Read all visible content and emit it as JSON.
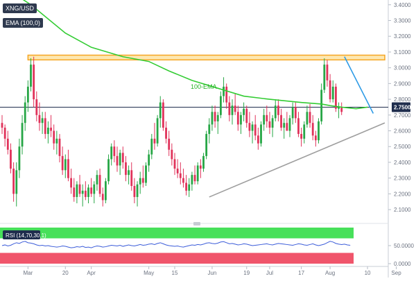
{
  "symbol": "XNG/USD",
  "indicator_tag": "EMA (100,0)",
  "rsi_tag": "RSI (14,70,30,1)",
  "annotation": "100-EMA",
  "current_price_label": "2.7500",
  "colors": {
    "bull": "#26a645",
    "bear": "#e0325a",
    "ema": "#33cc33",
    "resistance_zone": "#f5a623",
    "trend_support": "#9e9e9e",
    "trend_resistance": "#2e9be6",
    "price_line": "#1f2d4d",
    "rsi_line": "#3a5bd9",
    "rsi_overbought": "#47e05a",
    "rsi_oversold": "#f0556b"
  },
  "chart_data": [
    {
      "type": "candlestick",
      "title": "XNG/USD",
      "y_ticks": [
        "3.4000",
        "3.3000",
        "3.2000",
        "3.1000",
        "3.0000",
        "2.9000",
        "2.8000",
        "2.7000",
        "2.6000",
        "2.5000",
        "2.4000",
        "2.3000",
        "2.2000",
        "2.1000"
      ],
      "ylim": [
        2.03,
        3.43
      ],
      "x_ticks": [
        "Mar",
        "20",
        "Apr",
        "May",
        "15",
        "Jun",
        "19",
        "Jul",
        "17",
        "Aug",
        "10",
        "Sep"
      ],
      "x_tick_index": [
        9,
        22,
        31,
        51,
        60,
        73,
        85,
        93,
        104,
        114,
        127,
        137
      ],
      "ohlc": [
        [
          2.65,
          2.7,
          2.58,
          2.62
        ],
        [
          2.62,
          2.64,
          2.5,
          2.55
        ],
        [
          2.55,
          2.6,
          2.45,
          2.48
        ],
        [
          2.48,
          2.52,
          2.33,
          2.36
        ],
        [
          2.36,
          2.4,
          2.15,
          2.2
        ],
        [
          2.2,
          2.4,
          2.12,
          2.35
        ],
        [
          2.35,
          2.55,
          2.3,
          2.5
        ],
        [
          2.5,
          2.7,
          2.45,
          2.65
        ],
        [
          2.65,
          2.82,
          2.6,
          2.78
        ],
        [
          2.78,
          2.92,
          2.72,
          2.88
        ],
        [
          2.88,
          3.06,
          2.85,
          3.02
        ],
        [
          3.02,
          3.07,
          2.75,
          2.8
        ],
        [
          2.8,
          2.85,
          2.66,
          2.7
        ],
        [
          2.7,
          2.78,
          2.6,
          2.65
        ],
        [
          2.65,
          2.72,
          2.58,
          2.68
        ],
        [
          2.68,
          2.72,
          2.55,
          2.58
        ],
        [
          2.58,
          2.66,
          2.52,
          2.62
        ],
        [
          2.62,
          2.7,
          2.56,
          2.6
        ],
        [
          2.6,
          2.64,
          2.48,
          2.52
        ],
        [
          2.52,
          2.6,
          2.45,
          2.55
        ],
        [
          2.55,
          2.58,
          2.4,
          2.44
        ],
        [
          2.44,
          2.5,
          2.32,
          2.35
        ],
        [
          2.35,
          2.45,
          2.3,
          2.42
        ],
        [
          2.42,
          2.48,
          2.28,
          2.3
        ],
        [
          2.3,
          2.36,
          2.2,
          2.24
        ],
        [
          2.24,
          2.3,
          2.15,
          2.18
        ],
        [
          2.18,
          2.28,
          2.14,
          2.26
        ],
        [
          2.26,
          2.32,
          2.18,
          2.2
        ],
        [
          2.2,
          2.26,
          2.12,
          2.22
        ],
        [
          2.22,
          2.28,
          2.16,
          2.18
        ],
        [
          2.18,
          2.26,
          2.14,
          2.24
        ],
        [
          2.24,
          2.3,
          2.18,
          2.2
        ],
        [
          2.2,
          2.28,
          2.14,
          2.26
        ],
        [
          2.26,
          2.35,
          2.22,
          2.32
        ],
        [
          2.32,
          2.36,
          2.18,
          2.2
        ],
        [
          2.2,
          2.24,
          2.12,
          2.16
        ],
        [
          2.16,
          2.3,
          2.14,
          2.28
        ],
        [
          2.28,
          2.45,
          2.26,
          2.42
        ],
        [
          2.42,
          2.52,
          2.38,
          2.5
        ],
        [
          2.5,
          2.54,
          2.4,
          2.44
        ],
        [
          2.44,
          2.5,
          2.34,
          2.38
        ],
        [
          2.38,
          2.48,
          2.32,
          2.46
        ],
        [
          2.46,
          2.5,
          2.36,
          2.4
        ],
        [
          2.4,
          2.44,
          2.28,
          2.32
        ],
        [
          2.32,
          2.38,
          2.26,
          2.35
        ],
        [
          2.35,
          2.4,
          2.22,
          2.25
        ],
        [
          2.25,
          2.3,
          2.14,
          2.18
        ],
        [
          2.18,
          2.28,
          2.12,
          2.26
        ],
        [
          2.26,
          2.34,
          2.2,
          2.3
        ],
        [
          2.3,
          2.38,
          2.24,
          2.27
        ],
        [
          2.27,
          2.4,
          2.25,
          2.38
        ],
        [
          2.38,
          2.48,
          2.34,
          2.45
        ],
        [
          2.45,
          2.58,
          2.42,
          2.55
        ],
        [
          2.55,
          2.65,
          2.48,
          2.52
        ],
        [
          2.52,
          2.7,
          2.5,
          2.68
        ],
        [
          2.68,
          2.82,
          2.62,
          2.78
        ],
        [
          2.78,
          2.8,
          2.6,
          2.62
        ],
        [
          2.62,
          2.66,
          2.52,
          2.55
        ],
        [
          2.55,
          2.6,
          2.44,
          2.48
        ],
        [
          2.48,
          2.52,
          2.38,
          2.42
        ],
        [
          2.42,
          2.46,
          2.32,
          2.36
        ],
        [
          2.36,
          2.42,
          2.3,
          2.33
        ],
        [
          2.33,
          2.4,
          2.26,
          2.3
        ],
        [
          2.3,
          2.36,
          2.24,
          2.27
        ],
        [
          2.27,
          2.32,
          2.19,
          2.22
        ],
        [
          2.22,
          2.3,
          2.18,
          2.26
        ],
        [
          2.26,
          2.34,
          2.22,
          2.32
        ],
        [
          2.32,
          2.38,
          2.26,
          2.28
        ],
        [
          2.28,
          2.4,
          2.26,
          2.38
        ],
        [
          2.38,
          2.42,
          2.3,
          2.36
        ],
        [
          2.36,
          2.46,
          2.34,
          2.44
        ],
        [
          2.44,
          2.6,
          2.42,
          2.58
        ],
        [
          2.58,
          2.68,
          2.52,
          2.64
        ],
        [
          2.64,
          2.76,
          2.6,
          2.72
        ],
        [
          2.72,
          2.76,
          2.62,
          2.66
        ],
        [
          2.66,
          2.72,
          2.58,
          2.7
        ],
        [
          2.7,
          2.85,
          2.68,
          2.82
        ],
        [
          2.82,
          2.94,
          2.78,
          2.88
        ],
        [
          2.88,
          2.9,
          2.74,
          2.78
        ],
        [
          2.78,
          2.82,
          2.66,
          2.7
        ],
        [
          2.7,
          2.8,
          2.64,
          2.76
        ],
        [
          2.76,
          2.84,
          2.7,
          2.72
        ],
        [
          2.72,
          2.76,
          2.6,
          2.64
        ],
        [
          2.64,
          2.72,
          2.58,
          2.7
        ],
        [
          2.7,
          2.78,
          2.66,
          2.74
        ],
        [
          2.74,
          2.76,
          2.62,
          2.65
        ],
        [
          2.65,
          2.72,
          2.56,
          2.6
        ],
        [
          2.6,
          2.66,
          2.52,
          2.64
        ],
        [
          2.64,
          2.7,
          2.54,
          2.57
        ],
        [
          2.57,
          2.62,
          2.48,
          2.52
        ],
        [
          2.52,
          2.66,
          2.5,
          2.64
        ],
        [
          2.64,
          2.74,
          2.6,
          2.7
        ],
        [
          2.7,
          2.76,
          2.62,
          2.66
        ],
        [
          2.66,
          2.72,
          2.58,
          2.62
        ],
        [
          2.62,
          2.7,
          2.56,
          2.68
        ],
        [
          2.68,
          2.8,
          2.66,
          2.76
        ],
        [
          2.76,
          2.8,
          2.66,
          2.7
        ],
        [
          2.7,
          2.74,
          2.6,
          2.62
        ],
        [
          2.62,
          2.68,
          2.55,
          2.65
        ],
        [
          2.65,
          2.72,
          2.6,
          2.6
        ],
        [
          2.6,
          2.7,
          2.56,
          2.68
        ],
        [
          2.68,
          2.78,
          2.64,
          2.75
        ],
        [
          2.75,
          2.78,
          2.65,
          2.68
        ],
        [
          2.68,
          2.72,
          2.56,
          2.58
        ],
        [
          2.58,
          2.62,
          2.5,
          2.55
        ],
        [
          2.55,
          2.66,
          2.52,
          2.64
        ],
        [
          2.64,
          2.76,
          2.62,
          2.72
        ],
        [
          2.72,
          2.77,
          2.62,
          2.65
        ],
        [
          2.65,
          2.7,
          2.54,
          2.57
        ],
        [
          2.57,
          2.6,
          2.5,
          2.54
        ],
        [
          2.54,
          2.68,
          2.52,
          2.66
        ],
        [
          2.66,
          2.9,
          2.64,
          2.86
        ],
        [
          2.86,
          3.06,
          2.84,
          3.02
        ],
        [
          3.02,
          3.05,
          2.88,
          2.92
        ],
        [
          2.92,
          2.96,
          2.78,
          2.8
        ],
        [
          2.8,
          2.92,
          2.78,
          2.88
        ],
        [
          2.88,
          2.9,
          2.72,
          2.74
        ],
        [
          2.74,
          2.78,
          2.68,
          2.75
        ],
        [
          2.75,
          2.78,
          2.7,
          2.72
        ]
      ],
      "ema": [
        [
          0,
          3.52
        ],
        [
          10,
          3.4
        ],
        [
          22,
          3.22
        ],
        [
          31,
          3.13
        ],
        [
          42,
          3.07
        ],
        [
          51,
          3.04
        ],
        [
          58,
          2.98
        ],
        [
          66,
          2.92
        ],
        [
          75,
          2.87
        ],
        [
          84,
          2.82
        ],
        [
          93,
          2.8
        ],
        [
          104,
          2.78
        ],
        [
          111,
          2.77
        ],
        [
          114,
          2.76
        ],
        [
          118,
          2.75
        ],
        [
          123,
          2.74
        ],
        [
          127,
          2.75
        ]
      ],
      "resistance_zone": [
        3.05,
        3.08
      ],
      "resistance_zone_index": [
        9,
        133
      ],
      "trendline_support": [
        [
          72,
          2.18
        ],
        [
          133,
          2.65
        ]
      ],
      "trendline_resistance": [
        [
          119,
          3.07
        ],
        [
          129,
          2.71
        ]
      ],
      "price_line": 2.75
    },
    {
      "type": "line",
      "title": "RSI (14,70,30,1)",
      "y_ticks": [
        "50.0000",
        "0.0000"
      ],
      "ylim": [
        0,
        100
      ],
      "overbought": 70,
      "oversold": 30,
      "values": [
        50,
        52,
        49,
        51,
        55,
        58,
        56,
        60,
        62,
        58,
        57,
        55,
        52,
        50,
        51,
        49,
        50,
        48,
        47,
        46,
        47,
        49,
        48,
        46,
        44,
        45,
        47,
        46,
        48,
        45,
        46,
        44,
        47,
        49,
        48,
        46,
        47,
        49,
        51,
        50,
        49,
        51,
        48,
        50,
        52,
        50,
        49,
        51,
        53,
        51,
        52,
        54,
        55,
        53,
        56,
        58,
        55,
        52,
        50,
        49,
        48,
        49,
        47,
        46,
        48,
        50,
        52,
        51,
        53,
        52,
        54,
        57,
        58,
        56,
        55,
        57,
        60,
        61,
        58,
        55,
        56,
        54,
        52,
        53,
        55,
        54,
        52,
        50,
        51,
        52,
        53,
        54,
        55,
        53,
        52,
        54,
        56,
        55,
        54,
        53,
        52,
        51,
        53,
        55,
        54,
        52,
        51,
        53,
        55,
        52,
        50,
        52,
        54,
        58,
        62,
        60,
        56,
        54,
        53,
        54,
        52,
        51
      ]
    }
  ]
}
